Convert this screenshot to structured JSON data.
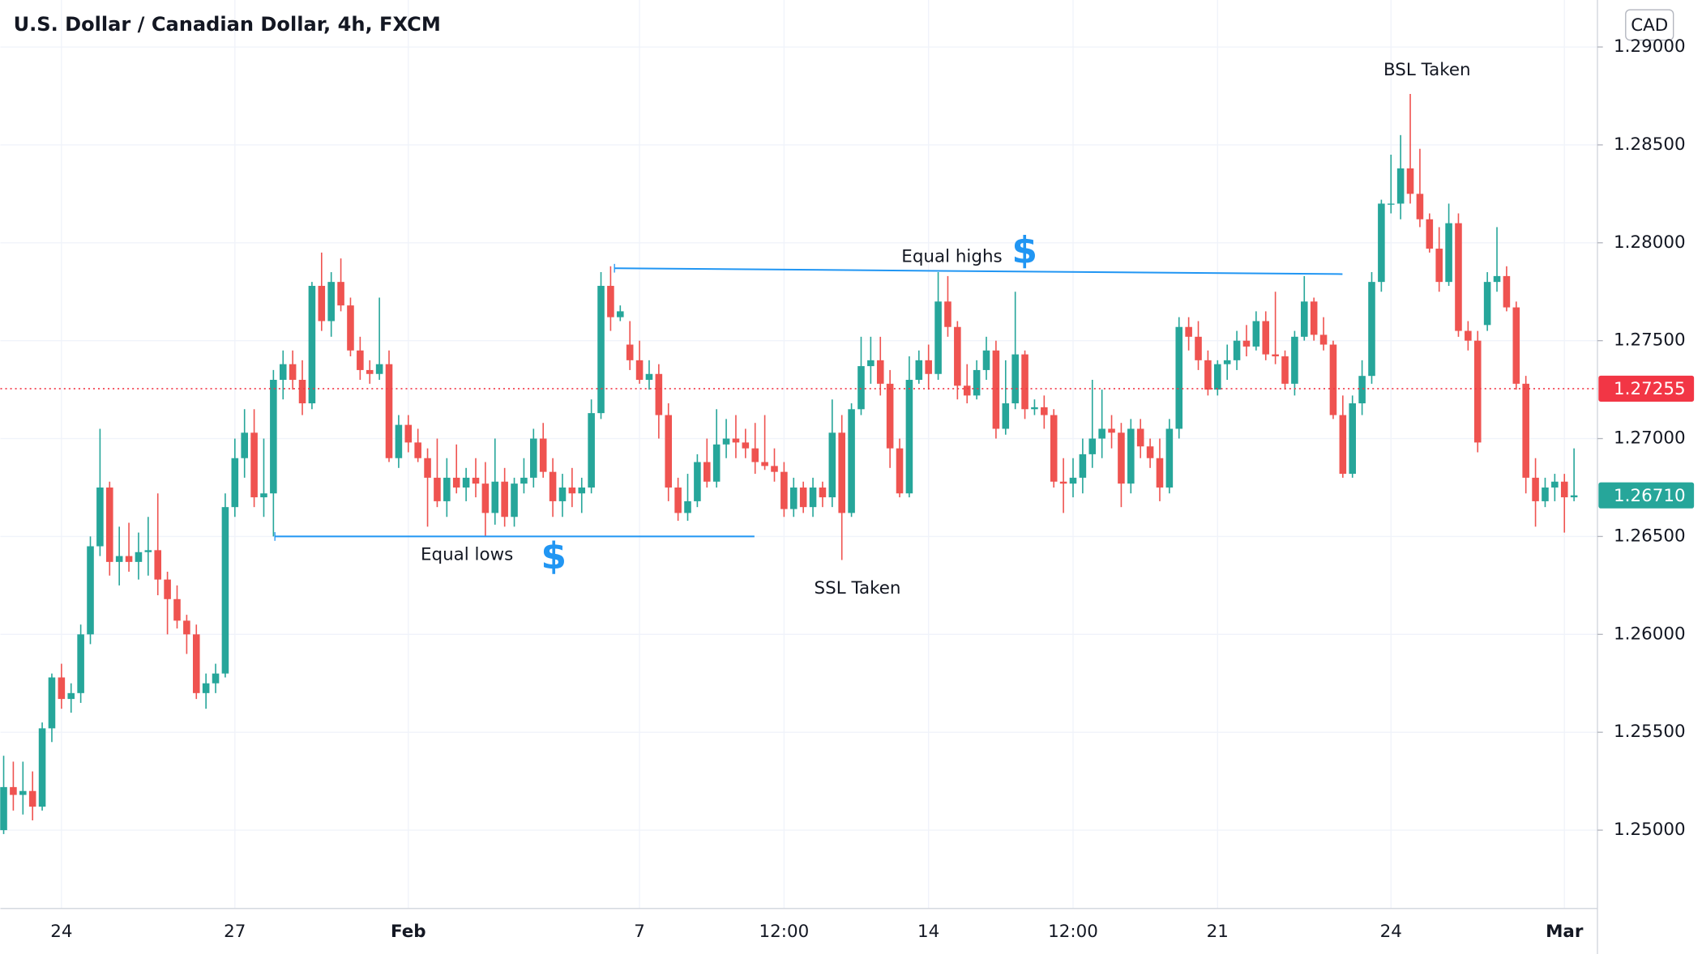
{
  "chart_data": {
    "type": "candlestick",
    "title": "U.S. Dollar / Canadian Dollar, 4h, FXCM",
    "currency": "CAD",
    "up_color": "#26a69a",
    "down_color": "#ef5350",
    "grid": true,
    "ylim": [
      1.246,
      1.2924
    ],
    "yticks": [
      {
        "value": 1.25,
        "label": "1.25000"
      },
      {
        "value": 1.255,
        "label": "1.25500"
      },
      {
        "value": 1.26,
        "label": "1.26000"
      },
      {
        "value": 1.265,
        "label": "1.26500"
      },
      {
        "value": 1.27,
        "label": "1.27000"
      },
      {
        "value": 1.275,
        "label": "1.27500"
      },
      {
        "value": 1.28,
        "label": "1.28000"
      },
      {
        "value": 1.285,
        "label": "1.28500"
      },
      {
        "value": 1.29,
        "label": "1.29000"
      }
    ],
    "categories": [
      null,
      null,
      null,
      null,
      null,
      null,
      "24",
      null,
      null,
      null,
      null,
      null,
      null,
      null,
      null,
      null,
      null,
      null,
      null,
      null,
      null,
      null,
      null,
      null,
      "27",
      null,
      null,
      null,
      null,
      null,
      null,
      null,
      null,
      null,
      null,
      null,
      null,
      null,
      null,
      null,
      null,
      null,
      "Feb",
      null,
      null,
      null,
      null,
      null,
      null,
      null,
      null,
      null,
      null,
      null,
      null,
      null,
      null,
      null,
      null,
      null,
      null,
      null,
      null,
      null,
      null,
      null,
      "7",
      null,
      null,
      null,
      null,
      null,
      null,
      null,
      null,
      null,
      null,
      null,
      null,
      null,
      null,
      "12:00",
      null,
      null,
      null,
      null,
      null,
      null,
      null,
      null,
      null,
      null,
      null,
      null,
      null,
      null,
      "14",
      null,
      null,
      null,
      null,
      null,
      null,
      null,
      null,
      null,
      null,
      null,
      null,
      null,
      null,
      "12:00",
      null,
      null,
      null,
      null,
      null,
      null,
      null,
      null,
      null,
      null,
      null,
      null,
      null,
      null,
      "21",
      null,
      null,
      null,
      null,
      null,
      null,
      null,
      null,
      null,
      null,
      null,
      null,
      null,
      null,
      null,
      null,
      null,
      "24",
      null,
      null,
      null,
      null,
      null,
      null,
      null,
      null,
      null,
      null,
      null,
      null,
      null,
      null,
      null,
      null,
      null,
      "Mar",
      null
    ],
    "open": [
      1.25,
      1.2522,
      1.2518,
      1.252,
      1.2512,
      1.2552,
      1.2578,
      1.2567,
      1.257,
      1.26,
      1.2645,
      1.2675,
      1.2637,
      1.264,
      1.2637,
      1.2642,
      1.2643,
      1.2628,
      1.2618,
      1.2607,
      1.26,
      1.257,
      1.2575,
      1.258,
      1.2665,
      1.269,
      1.2703,
      1.267,
      1.2672,
      1.273,
      1.2738,
      1.273,
      1.2718,
      1.2778,
      1.276,
      1.278,
      1.2768,
      1.2745,
      1.2735,
      1.2733,
      1.2738,
      1.269,
      1.2707,
      1.2698,
      1.269,
      1.268,
      1.2668,
      1.268,
      1.2675,
      1.268,
      1.2677,
      1.2662,
      1.2678,
      1.266,
      1.2677,
      1.268,
      1.27,
      1.2683,
      1.2668,
      1.2675,
      1.2672,
      1.2675,
      1.2713,
      1.2778,
      1.2762,
      1.2748,
      1.274,
      1.273,
      1.2733,
      1.2712,
      1.2675,
      1.2662,
      1.2668,
      1.2688,
      1.2678,
      1.2697,
      1.27,
      1.2698,
      1.2695,
      1.2688,
      1.2686,
      1.2683,
      1.2664,
      1.2675,
      1.2665,
      1.2675,
      1.267,
      1.2703,
      1.2662,
      1.2715,
      1.2737,
      1.274,
      1.2728,
      1.2695,
      1.2672,
      1.273,
      1.274,
      1.2733,
      1.277,
      1.2757,
      1.2727,
      1.2722,
      1.2735,
      1.2745,
      1.2705,
      1.2718,
      1.2743,
      1.2715,
      1.2716,
      1.2712,
      1.2678,
      1.2677,
      1.268,
      1.2692,
      1.27,
      1.2705,
      1.2703,
      1.2677,
      1.2705,
      1.2696,
      1.269,
      1.2675,
      1.2705,
      1.2757,
      1.2752,
      1.274,
      1.2725,
      1.2738,
      1.274,
      1.275,
      1.2747,
      1.276,
      1.2743,
      1.2742,
      1.2728,
      1.2752,
      1.277,
      1.2753,
      1.2748,
      1.2712,
      1.2682,
      1.2718,
      1.2732,
      1.278,
      1.282,
      1.282,
      1.2838,
      1.2825,
      1.2812,
      1.2797,
      1.278,
      1.281,
      1.2755,
      1.275,
      1.2758,
      1.278,
      1.2783,
      1.2767,
      1.2728,
      1.268,
      1.2668,
      1.2675,
      1.2678,
      1.267
    ],
    "high": [
      1.2538,
      1.2535,
      1.2535,
      1.253,
      1.2555,
      1.258,
      1.2585,
      1.2575,
      1.2605,
      1.265,
      1.2705,
      1.2678,
      1.2655,
      1.2657,
      1.2652,
      1.266,
      1.2672,
      1.2632,
      1.2625,
      1.261,
      1.2605,
      1.258,
      1.2585,
      1.2672,
      1.27,
      1.2715,
      1.2715,
      1.27,
      1.2735,
      1.2745,
      1.2745,
      1.274,
      1.278,
      1.2795,
      1.2785,
      1.2792,
      1.2772,
      1.2752,
      1.274,
      1.2772,
      1.2745,
      1.2712,
      1.2712,
      1.2705,
      1.2695,
      1.27,
      1.269,
      1.2697,
      1.2685,
      1.269,
      1.2688,
      1.27,
      1.2685,
      1.268,
      1.269,
      1.2705,
      1.2708,
      1.269,
      1.2682,
      1.2685,
      1.268,
      1.272,
      1.2785,
      1.2788,
      1.2768,
      1.276,
      1.275,
      1.274,
      1.2738,
      1.2718,
      1.268,
      1.2682,
      1.2692,
      1.27,
      1.2715,
      1.271,
      1.2712,
      1.2705,
      1.2708,
      1.2712,
      1.2695,
      1.2688,
      1.268,
      1.2678,
      1.268,
      1.2678,
      1.272,
      1.2712,
      1.2718,
      1.2752,
      1.2752,
      1.2752,
      1.2735,
      1.27,
      1.2742,
      1.2745,
      1.2748,
      1.2785,
      1.2783,
      1.276,
      1.2738,
      1.274,
      1.2752,
      1.275,
      1.274,
      1.2775,
      1.2745,
      1.272,
      1.2722,
      1.2715,
      1.269,
      1.269,
      1.27,
      1.273,
      1.2725,
      1.2712,
      1.2708,
      1.271,
      1.271,
      1.27,
      1.27,
      1.271,
      1.2762,
      1.2762,
      1.276,
      1.2745,
      1.274,
      1.2748,
      1.2755,
      1.2758,
      1.2765,
      1.2765,
      1.2775,
      1.2745,
      1.2755,
      1.2783,
      1.2772,
      1.2762,
      1.275,
      1.2722,
      1.2722,
      1.274,
      1.2785,
      1.2822,
      1.2845,
      1.2855,
      1.2876,
      1.2848,
      1.2815,
      1.2808,
      1.282,
      1.2815,
      1.276,
      1.2755,
      1.2785,
      1.2808,
      1.2788,
      1.277,
      1.2732,
      1.269,
      1.268,
      1.2682,
      1.2682,
      1.2695
    ],
    "low": [
      1.2498,
      1.251,
      1.2508,
      1.2505,
      1.251,
      1.2545,
      1.2562,
      1.256,
      1.2565,
      1.2595,
      1.264,
      1.263,
      1.2625,
      1.2632,
      1.2628,
      1.263,
      1.262,
      1.26,
      1.2603,
      1.259,
      1.2567,
      1.2562,
      1.257,
      1.2578,
      1.266,
      1.268,
      1.2665,
      1.266,
      1.265,
      1.272,
      1.2725,
      1.2712,
      1.2715,
      1.2755,
      1.2752,
      1.2765,
      1.2742,
      1.273,
      1.2728,
      1.273,
      1.2688,
      1.2685,
      1.2693,
      1.2688,
      1.2655,
      1.2665,
      1.266,
      1.2672,
      1.2668,
      1.267,
      1.265,
      1.2656,
      1.2655,
      1.2655,
      1.2672,
      1.2675,
      1.268,
      1.266,
      1.266,
      1.2665,
      1.2662,
      1.2672,
      1.271,
      1.2755,
      1.276,
      1.2735,
      1.2728,
      1.2725,
      1.27,
      1.2668,
      1.2658,
      1.2658,
      1.2665,
      1.2675,
      1.2675,
      1.269,
      1.269,
      1.269,
      1.2682,
      1.2684,
      1.2678,
      1.266,
      1.266,
      1.2662,
      1.266,
      1.2665,
      1.2665,
      1.2638,
      1.266,
      1.2712,
      1.2728,
      1.2722,
      1.2685,
      1.267,
      1.267,
      1.2728,
      1.2725,
      1.273,
      1.2752,
      1.272,
      1.2718,
      1.272,
      1.273,
      1.27,
      1.2702,
      1.2715,
      1.271,
      1.2712,
      1.2705,
      1.2675,
      1.2662,
      1.267,
      1.2672,
      1.2685,
      1.269,
      1.2695,
      1.2665,
      1.2672,
      1.269,
      1.2685,
      1.2668,
      1.2672,
      1.27,
      1.2745,
      1.2735,
      1.2722,
      1.2722,
      1.273,
      1.2735,
      1.2742,
      1.2745,
      1.274,
      1.2738,
      1.2725,
      1.2722,
      1.275,
      1.275,
      1.2745,
      1.271,
      1.268,
      1.268,
      1.2712,
      1.2728,
      1.2775,
      1.2815,
      1.2812,
      1.282,
      1.2808,
      1.2795,
      1.2775,
      1.2778,
      1.2752,
      1.2745,
      1.2693,
      1.2755,
      1.2775,
      1.2765,
      1.2725,
      1.2672,
      1.2655,
      1.2665,
      1.2668,
      1.2652,
      1.2668
    ],
    "close": [
      1.2522,
      1.2518,
      1.252,
      1.2512,
      1.2552,
      1.2578,
      1.2567,
      1.257,
      1.26,
      1.2645,
      1.2675,
      1.2637,
      1.264,
      1.2637,
      1.2642,
      1.2643,
      1.2628,
      1.2618,
      1.2607,
      1.26,
      1.257,
      1.2575,
      1.258,
      1.2665,
      1.269,
      1.2703,
      1.267,
      1.2672,
      1.273,
      1.2738,
      1.273,
      1.2718,
      1.2778,
      1.276,
      1.278,
      1.2768,
      1.2745,
      1.2735,
      1.2733,
      1.2738,
      1.269,
      1.2707,
      1.2698,
      1.269,
      1.268,
      1.2668,
      1.268,
      1.2675,
      1.268,
      1.2677,
      1.2662,
      1.2678,
      1.266,
      1.2677,
      1.268,
      1.27,
      1.2683,
      1.2668,
      1.2675,
      1.2672,
      1.2675,
      1.2713,
      1.2778,
      1.2762,
      1.2765,
      1.274,
      1.273,
      1.2733,
      1.2712,
      1.2675,
      1.2662,
      1.2668,
      1.2688,
      1.2678,
      1.2697,
      1.27,
      1.2698,
      1.2695,
      1.2688,
      1.2686,
      1.2683,
      1.2664,
      1.2675,
      1.2665,
      1.2675,
      1.267,
      1.2703,
      1.2662,
      1.2715,
      1.2737,
      1.274,
      1.2728,
      1.2695,
      1.2672,
      1.273,
      1.274,
      1.2733,
      1.277,
      1.2757,
      1.2727,
      1.2722,
      1.2735,
      1.2745,
      1.2705,
      1.2718,
      1.2743,
      1.2715,
      1.2716,
      1.2712,
      1.2678,
      1.2677,
      1.268,
      1.2692,
      1.27,
      1.2705,
      1.2703,
      1.2677,
      1.2705,
      1.2696,
      1.269,
      1.2675,
      1.2705,
      1.2757,
      1.2752,
      1.274,
      1.2725,
      1.2738,
      1.274,
      1.275,
      1.2747,
      1.276,
      1.2743,
      1.2742,
      1.2728,
      1.2752,
      1.277,
      1.2753,
      1.2748,
      1.2712,
      1.2682,
      1.2718,
      1.2732,
      1.278,
      1.282,
      1.282,
      1.2838,
      1.2825,
      1.2812,
      1.2797,
      1.278,
      1.281,
      1.2755,
      1.275,
      1.2698,
      1.278,
      1.2783,
      1.2767,
      1.2728,
      1.268,
      1.2668,
      1.2675,
      1.2678,
      1.267,
      1.2671
    ],
    "levels": [
      {
        "name": "Equal highs",
        "icon": "$",
        "values": [
          1.2787,
          1.2784
        ],
        "color": "#2196f3"
      },
      {
        "name": "Equal lows",
        "icon": "$",
        "values": [
          1.265,
          1.265
        ],
        "color": "#2196f3"
      }
    ],
    "annotations": [
      "SSL Taken",
      "BSL Taken"
    ],
    "price_line": {
      "value": 1.27255,
      "label": "1.27255",
      "color": "#f23645"
    },
    "last_price": {
      "value": 1.2671,
      "label": "1.26710",
      "color": "#26a69a"
    }
  }
}
